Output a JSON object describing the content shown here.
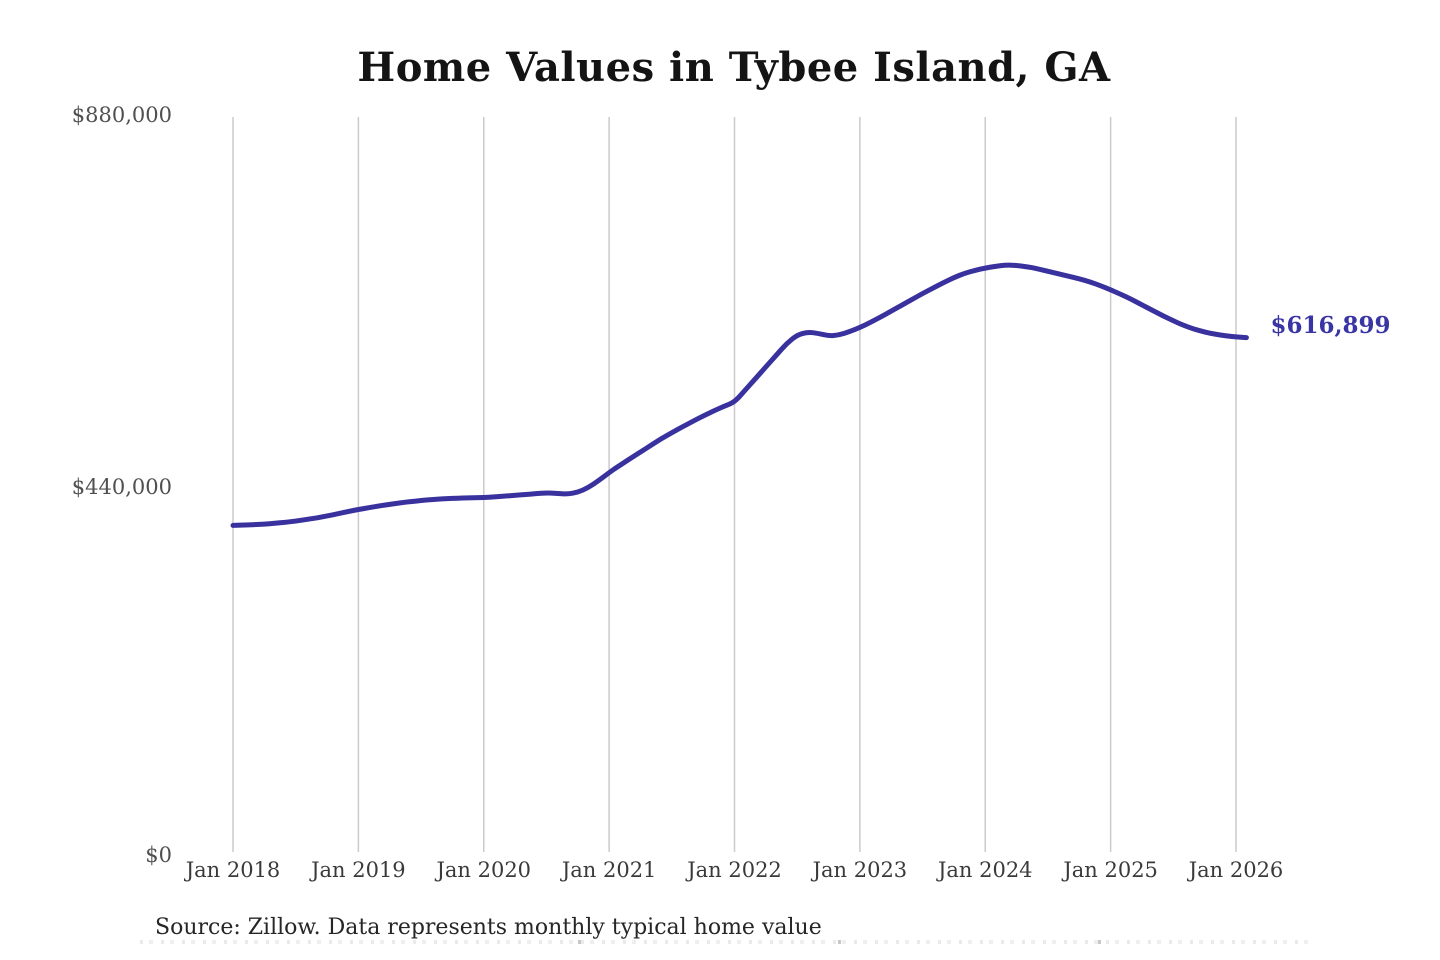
{
  "header": {
    "title": "Home Values in Tybee Island, GA"
  },
  "chart_data": {
    "type": "line",
    "title": "Home Values in Tybee Island, GA",
    "x_start": "Jan 2018",
    "x_end": "Feb 2026",
    "frequency": "monthly",
    "x_tick_labels": [
      "Jan 2018",
      "Jan 2019",
      "Jan 2020",
      "Jan 2021",
      "Jan 2022",
      "Jan 2023",
      "Jan 2024",
      "Jan 2025",
      "Jan 2026"
    ],
    "y_tick_labels": [
      "$0",
      "$440,000",
      "$880,000"
    ],
    "ylim": [
      0,
      880000
    ],
    "grid": "vertical-only",
    "legend": "none",
    "line_color": "#39319d",
    "grid_color": "#cbcbcb",
    "end_value": 616899,
    "end_value_label": "$616,899",
    "values": [
      393000,
      393400,
      393900,
      394600,
      395500,
      396700,
      398200,
      400000,
      402000,
      404300,
      406800,
      409500,
      412000,
      414200,
      416300,
      418200,
      419900,
      421400,
      422700,
      423800,
      424700,
      425300,
      425700,
      426000,
      426300,
      427000,
      427900,
      428900,
      429900,
      430900,
      431800,
      431200,
      430400,
      432500,
      438000,
      446500,
      456000,
      464500,
      472500,
      480500,
      488500,
      496500,
      503500,
      510500,
      517000,
      523500,
      529500,
      535000,
      540000,
      554000,
      568000,
      582000,
      596000,
      610000,
      620000,
      623500,
      622000,
      619000,
      620000,
      624000,
      629000,
      635000,
      641500,
      648500,
      655500,
      662500,
      669500,
      676000,
      682500,
      688500,
      693500,
      697000,
      700000,
      702000,
      703500,
      703000,
      701500,
      699000,
      696000,
      693000,
      690000,
      687000,
      683500,
      679000,
      674000,
      668500,
      662500,
      656000,
      649500,
      643000,
      637000,
      631500,
      627000,
      623500,
      621000,
      619000,
      617800,
      616899
    ]
  },
  "footer": {
    "source": "Source: Zillow. Data represents monthly typical home value"
  }
}
